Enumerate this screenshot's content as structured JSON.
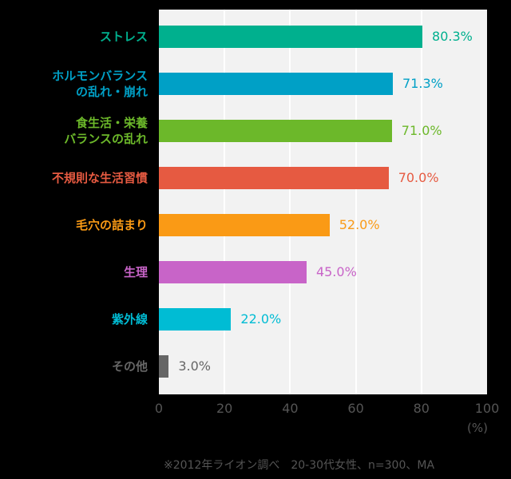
{
  "chart_data": {
    "type": "bar",
    "orientation": "horizontal",
    "categories": [
      "ストレス",
      "ホルモンバランス\nの乱れ・崩れ",
      "食生活・栄養\nバランスの乱れ",
      "不規則な生活習慣",
      "毛穴の詰まり",
      "生理",
      "紫外線",
      "その他"
    ],
    "values": [
      80.3,
      71.3,
      71.0,
      70.0,
      52.0,
      45.0,
      22.0,
      3.0
    ],
    "value_labels": [
      "80.3%",
      "71.3%",
      "71.0%",
      "70.0%",
      "52.0%",
      "45.0%",
      "22.0%",
      "3.0%"
    ],
    "colors": [
      "#00B08E",
      "#00A0C6",
      "#6CB82A",
      "#E65A41",
      "#FA9A15",
      "#C864C8",
      "#00BCD4",
      "#666666"
    ],
    "xlim": [
      0,
      100
    ],
    "xticks": [
      "0",
      "20",
      "40",
      "60",
      "80",
      "100"
    ],
    "xlabel": "(%)",
    "grid": true,
    "footnote": "※2012年ライオン調べ　20-30代女性、n=300、MA"
  }
}
